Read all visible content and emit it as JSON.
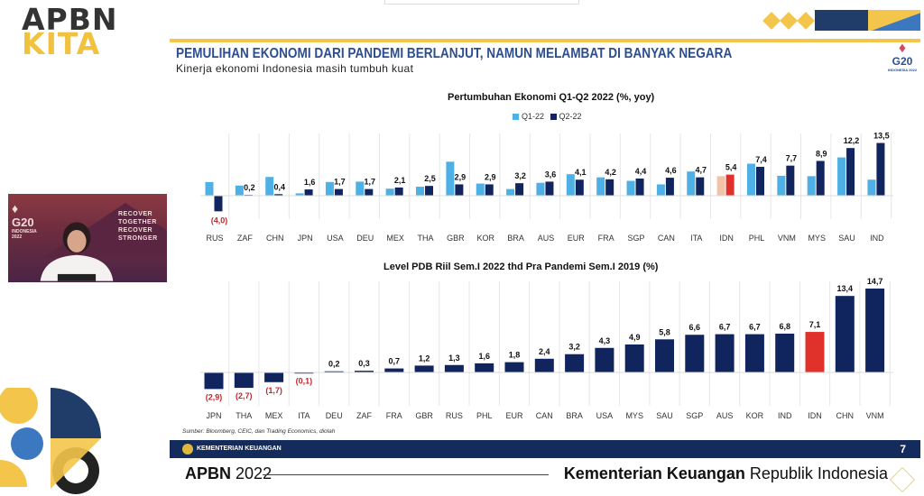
{
  "brand": {
    "line1": "APBN",
    "line2": "KITA"
  },
  "slide": {
    "title": "PEMULIHAN EKONOMI DARI PANDEMI BERLANJUT, NAMUN MELAMBAT DI BANYAK NEGARA",
    "subtitle": "Kinerja ekonomi Indonesia masih tumbuh kuat",
    "g20_logo": {
      "text": "G20",
      "sub": "INDONESIA 2022"
    },
    "source": "Sumber: Bloomberg, CEIC, dan Trading Economics, diolah",
    "footer_label": "KEMENTERIAN KEUANGAN",
    "page_number": "7",
    "bottom_left_bold": "APBN",
    "bottom_left_year": "2022",
    "bottom_right_bold": "Kementerian Keuangan",
    "bottom_right_rest": "Republik Indonesia"
  },
  "webcam": {
    "logo": "G20",
    "logo_sub": "INDONESIA 2022",
    "tagline": [
      "RECOVER",
      "TOGETHER",
      "RECOVER",
      "STRONGER"
    ]
  },
  "colors": {
    "q1": "#4fb0e6",
    "q2": "#10245e",
    "idn_q1": "#f3c3a8",
    "idn_q2": "#e0312a",
    "negative_label": "#c0272d",
    "accent_yellow": "#f3c54a",
    "navy": "#142c5c"
  },
  "chart_data": [
    {
      "type": "bar",
      "title": "Pertumbuhan Ekonomi Q1-Q2 2022 (%, yoy)",
      "categories": [
        "RUS",
        "ZAF",
        "CHN",
        "JPN",
        "USA",
        "DEU",
        "MEX",
        "THA",
        "GBR",
        "KOR",
        "BRA",
        "AUS",
        "EUR",
        "FRA",
        "SGP",
        "CAN",
        "ITA",
        "IDN",
        "PHL",
        "VNM",
        "MYS",
        "SAU",
        "IND"
      ],
      "series": [
        {
          "name": "Q1-22",
          "values": [
            3.5,
            2.6,
            4.8,
            0.6,
            3.5,
            3.6,
            1.8,
            2.3,
            8.7,
            3.1,
            1.7,
            3.3,
            5.5,
            4.7,
            3.8,
            2.9,
            6.2,
            5.0,
            8.2,
            5.1,
            5.0,
            9.8,
            4.1
          ]
        },
        {
          "name": "Q2-22",
          "values": [
            -4.0,
            0.2,
            0.4,
            1.6,
            1.7,
            1.7,
            2.1,
            2.5,
            2.9,
            2.9,
            3.2,
            3.6,
            4.1,
            4.2,
            4.4,
            4.6,
            4.7,
            5.4,
            7.4,
            7.7,
            8.9,
            12.2,
            13.5
          ]
        }
      ],
      "data_labels": [
        "(4,0)",
        "0,2",
        "0,4",
        "1,6",
        "1,7",
        "1,7",
        "2,1",
        "2,5",
        "2,9",
        "2,9",
        "3,2",
        "3,6",
        "4,1",
        "4,2",
        "4,4",
        "4,6",
        "4,7",
        "5,4",
        "7,4",
        "7,7",
        "8,9",
        "12,2",
        "13,5"
      ],
      "highlight": "IDN",
      "legend": "top-center",
      "grid": false
    },
    {
      "type": "bar",
      "title": "Level PDB Riil Sem.I 2022 thd Pra Pandemi Sem.I 2019  (%)",
      "categories": [
        "JPN",
        "THA",
        "MEX",
        "ITA",
        "DEU",
        "ZAF",
        "FRA",
        "GBR",
        "RUS",
        "PHL",
        "EUR",
        "CAN",
        "BRA",
        "USA",
        "MYS",
        "SAU",
        "SGP",
        "AUS",
        "KOR",
        "IND",
        "IDN",
        "CHN",
        "VNM"
      ],
      "values": [
        -2.9,
        -2.7,
        -1.7,
        -0.1,
        0.2,
        0.3,
        0.7,
        1.2,
        1.3,
        1.6,
        1.8,
        2.4,
        3.2,
        4.3,
        4.9,
        5.8,
        6.6,
        6.7,
        6.7,
        6.8,
        7.1,
        13.4,
        14.7
      ],
      "data_labels": [
        "(2,9)",
        "(2,7)",
        "(1,7)",
        "(0,1)",
        "0,2",
        "0,3",
        "0,7",
        "1,2",
        "1,3",
        "1,6",
        "1,8",
        "2,4",
        "3,2",
        "4,3",
        "4,9",
        "5,8",
        "6,6",
        "6,7",
        "6,7",
        "6,8",
        "7,1",
        "13,4",
        "14,7"
      ],
      "highlight": "IDN",
      "grid": false
    }
  ]
}
